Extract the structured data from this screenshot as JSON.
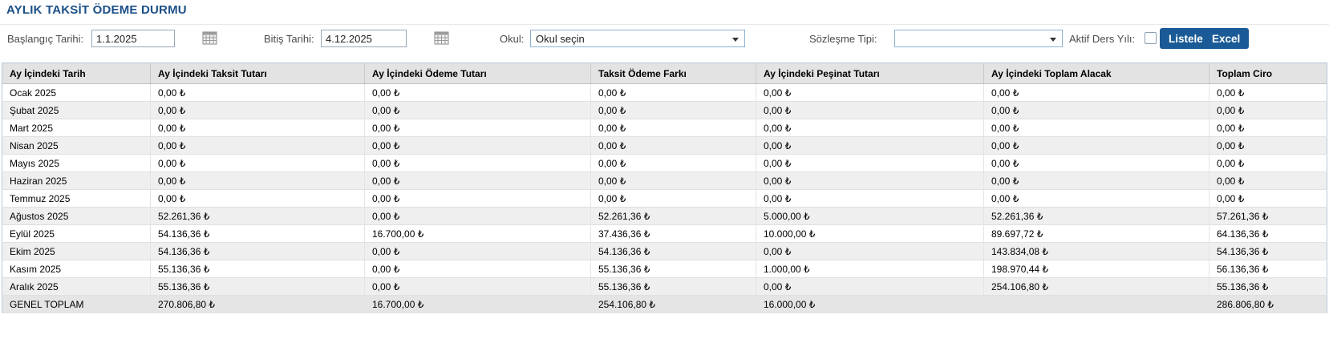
{
  "title": "AYLIK TAKSİT ÖDEME DURMU",
  "filters": {
    "start_date": {
      "label": "Başlangıç Tarihi:",
      "value": "1.1.2025"
    },
    "end_date": {
      "label": "Bitiş Tarihi:",
      "value": "4.12.2025"
    },
    "school": {
      "label": "Okul:",
      "value": "Okul seçin"
    },
    "contract_type": {
      "label": "Sözleşme Tipi:",
      "value": ""
    },
    "active_year": {
      "label": "Aktif Ders Yılı:",
      "checked": false
    },
    "list_button": "Listele",
    "excel_button": "Excel"
  },
  "table": {
    "columns": [
      "Ay İçindeki Tarih",
      "Ay İçindeki Taksit Tutarı",
      "Ay İçindeki Ödeme Tutarı",
      "Taksit Ödeme Farkı",
      "Ay İçindeki Peşinat Tutarı",
      "Ay İçindeki Toplam Alacak",
      "Toplam Ciro"
    ],
    "rows": [
      [
        "Ocak 2025",
        "0,00 ₺",
        "0,00 ₺",
        "0,00 ₺",
        "0,00 ₺",
        "0,00 ₺",
        "0,00 ₺"
      ],
      [
        "Şubat 2025",
        "0,00 ₺",
        "0,00 ₺",
        "0,00 ₺",
        "0,00 ₺",
        "0,00 ₺",
        "0,00 ₺"
      ],
      [
        "Mart 2025",
        "0,00 ₺",
        "0,00 ₺",
        "0,00 ₺",
        "0,00 ₺",
        "0,00 ₺",
        "0,00 ₺"
      ],
      [
        "Nisan 2025",
        "0,00 ₺",
        "0,00 ₺",
        "0,00 ₺",
        "0,00 ₺",
        "0,00 ₺",
        "0,00 ₺"
      ],
      [
        "Mayıs 2025",
        "0,00 ₺",
        "0,00 ₺",
        "0,00 ₺",
        "0,00 ₺",
        "0,00 ₺",
        "0,00 ₺"
      ],
      [
        "Haziran 2025",
        "0,00 ₺",
        "0,00 ₺",
        "0,00 ₺",
        "0,00 ₺",
        "0,00 ₺",
        "0,00 ₺"
      ],
      [
        "Temmuz 2025",
        "0,00 ₺",
        "0,00 ₺",
        "0,00 ₺",
        "0,00 ₺",
        "0,00 ₺",
        "0,00 ₺"
      ],
      [
        "Ağustos 2025",
        "52.261,36 ₺",
        "0,00 ₺",
        "52.261,36 ₺",
        "5.000,00 ₺",
        "52.261,36 ₺",
        "57.261,36 ₺"
      ],
      [
        "Eylül 2025",
        "54.136,36 ₺",
        "16.700,00 ₺",
        "37.436,36 ₺",
        "10.000,00 ₺",
        "89.697,72 ₺",
        "64.136,36 ₺"
      ],
      [
        "Ekim 2025",
        "54.136,36 ₺",
        "0,00 ₺",
        "54.136,36 ₺",
        "0,00 ₺",
        "143.834,08 ₺",
        "54.136,36 ₺"
      ],
      [
        "Kasım 2025",
        "55.136,36 ₺",
        "0,00 ₺",
        "55.136,36 ₺",
        "1.000,00 ₺",
        "198.970,44 ₺",
        "56.136,36 ₺"
      ],
      [
        "Aralık 2025",
        "55.136,36 ₺",
        "0,00 ₺",
        "55.136,36 ₺",
        "0,00 ₺",
        "254.106,80 ₺",
        "55.136,36 ₺"
      ]
    ],
    "total_row": [
      "GENEL TOPLAM",
      "270.806,80 ₺",
      "16.700,00 ₺",
      "254.106,80 ₺",
      "16.000,00 ₺",
      "",
      "286.806,80 ₺"
    ]
  },
  "colors": {
    "title": "#1b4f87",
    "button": "#1a5a96",
    "header_bg": "#e3e3e3",
    "stripe": "#efefef"
  }
}
